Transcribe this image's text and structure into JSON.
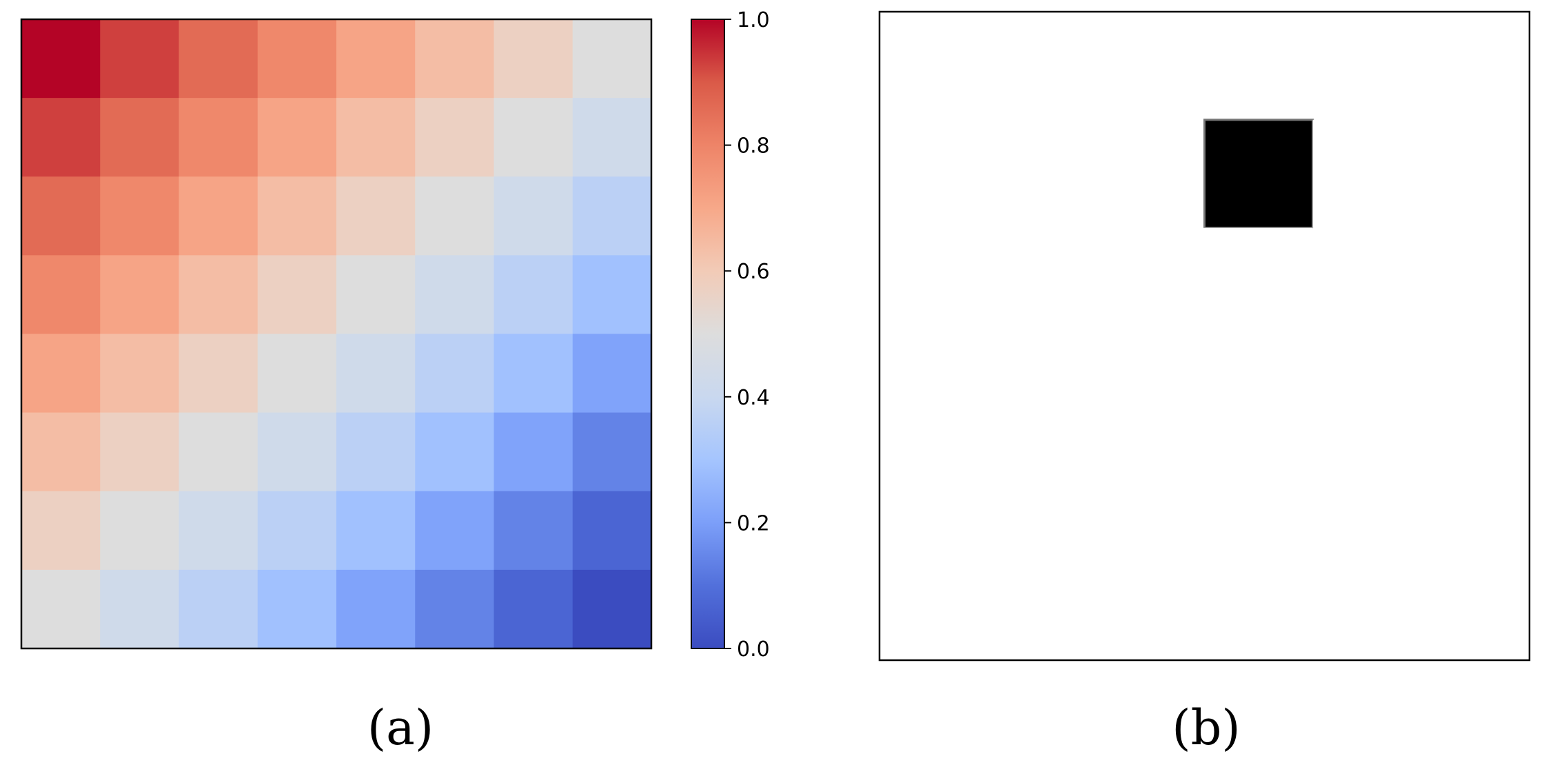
{
  "chart_data": [
    {
      "type": "heatmap",
      "panel_label": "(a)",
      "rows": 8,
      "cols": 8,
      "values": [
        [
          1.0,
          0.93,
          0.86,
          0.79,
          0.71,
          0.64,
          0.57,
          0.5
        ],
        [
          0.93,
          0.86,
          0.79,
          0.71,
          0.64,
          0.57,
          0.5,
          0.43
        ],
        [
          0.86,
          0.79,
          0.71,
          0.64,
          0.57,
          0.5,
          0.43,
          0.36
        ],
        [
          0.79,
          0.71,
          0.64,
          0.57,
          0.5,
          0.43,
          0.36,
          0.29
        ],
        [
          0.71,
          0.64,
          0.57,
          0.5,
          0.43,
          0.36,
          0.29,
          0.21
        ],
        [
          0.64,
          0.57,
          0.5,
          0.43,
          0.36,
          0.29,
          0.21,
          0.14
        ],
        [
          0.57,
          0.5,
          0.43,
          0.36,
          0.29,
          0.21,
          0.14,
          0.07
        ],
        [
          0.5,
          0.43,
          0.36,
          0.29,
          0.21,
          0.14,
          0.07,
          0.0
        ]
      ],
      "colormap": "coolwarm",
      "colorbar": {
        "range": [
          0.0,
          1.0
        ],
        "ticks": [
          "0.0",
          "0.2",
          "0.4",
          "0.6",
          "0.8",
          "1.0"
        ]
      },
      "axis_ticks_shown": false
    },
    {
      "type": "heatmap",
      "panel_label": "(b)",
      "rows": 6,
      "cols": 6,
      "background_color": "#ffffff",
      "highlight_color": "#000000",
      "highlighted_cell": {
        "row": 1,
        "col": 3
      },
      "axis_ticks_shown": false
    }
  ]
}
